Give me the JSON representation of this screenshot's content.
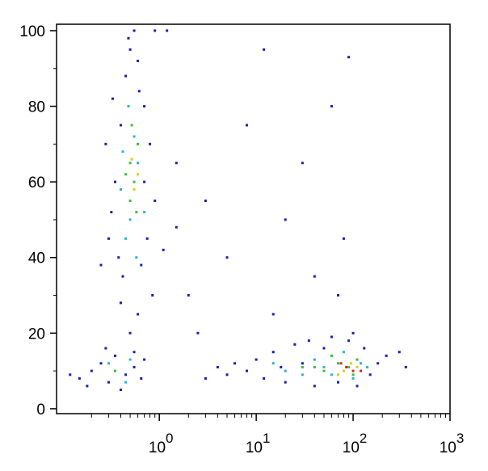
{
  "chart_data": {
    "type": "scatter",
    "xscale": "log",
    "xlim": [
      0.087,
      1000
    ],
    "ylim": [
      -1.3,
      101.7
    ],
    "xticks": [
      {
        "value": 1,
        "label": "10",
        "power": "0"
      },
      {
        "value": 10,
        "label": "10",
        "power": "1"
      },
      {
        "value": 100,
        "label": "10",
        "power": "2"
      },
      {
        "value": 1000,
        "label": "10",
        "power": "3"
      }
    ],
    "xminorticks": [
      0.2,
      0.3,
      0.4,
      0.5,
      0.6,
      0.7,
      0.8,
      0.9,
      2,
      3,
      4,
      5,
      6,
      7,
      8,
      9,
      20,
      30,
      40,
      50,
      60,
      70,
      80,
      90,
      200,
      300,
      400,
      500,
      600,
      700,
      800,
      900
    ],
    "yticks": [
      0,
      20,
      40,
      60,
      80,
      100
    ],
    "yminorticks": [
      10,
      30,
      50,
      70,
      90
    ],
    "series": [
      {
        "color": "#1c1cb0",
        "x": [
          0.3,
          0.35,
          0.4,
          0.45,
          0.5,
          0.55,
          0.6,
          0.7,
          0.8,
          0.9,
          0.32,
          0.38,
          0.42,
          0.65,
          0.75,
          0.85,
          0.6,
          0.5,
          0.4,
          0.55,
          0.7,
          0.28,
          0.33,
          0.48,
          0.9,
          1.2,
          1.1,
          1.5,
          0.25,
          0.62,
          0.15,
          0.2,
          0.25,
          0.3,
          0.35,
          0.45,
          0.55,
          0.65,
          0.12,
          0.18,
          0.4,
          0.7,
          0.28,
          8,
          10,
          12,
          15,
          20,
          25,
          30,
          40,
          50,
          60,
          70,
          90,
          110,
          130,
          150,
          180,
          220,
          300,
          350,
          5,
          6,
          3,
          4,
          18,
          35,
          2,
          3,
          5,
          8,
          15,
          20,
          40,
          60,
          80,
          100,
          1.5,
          2.5,
          30,
          12,
          90,
          70
        ],
        "values": [
          45,
          60,
          75,
          88,
          95,
          100,
          92,
          80,
          70,
          55,
          52,
          40,
          35,
          38,
          45,
          30,
          25,
          20,
          28,
          15,
          60,
          70,
          82,
          98,
          100,
          100,
          42,
          48,
          38,
          84,
          8,
          10,
          12,
          7,
          14,
          9,
          11,
          8,
          9,
          6,
          5,
          13,
          16,
          10,
          13,
          8,
          15,
          7,
          17,
          12,
          6,
          16,
          19,
          7,
          18,
          6,
          16,
          9,
          12,
          14,
          15,
          11,
          9,
          12,
          8,
          11,
          11,
          18,
          30,
          55,
          40,
          75,
          25,
          50,
          35,
          80,
          45,
          20,
          65,
          20,
          65,
          95,
          93,
          30
        ]
      },
      {
        "color": "#2ab4c8",
        "x": [
          0.45,
          0.5,
          0.6,
          0.55,
          0.48,
          0.4,
          0.7,
          0.42,
          0.3,
          0.5,
          0.45,
          20,
          30,
          40,
          50,
          80,
          100,
          120,
          60,
          15,
          140,
          0.58
        ],
        "values": [
          45,
          50,
          65,
          72,
          80,
          58,
          52,
          68,
          12,
          13,
          7,
          10,
          9,
          13,
          11,
          15,
          8,
          12,
          9,
          12,
          11,
          40
        ]
      },
      {
        "color": "#34c034",
        "x": [
          0.5,
          0.55,
          0.6,
          0.5,
          0.45,
          0.52,
          0.58,
          0.35,
          50,
          70,
          90,
          110,
          40,
          100,
          60,
          30
        ],
        "values": [
          55,
          60,
          70,
          65,
          62,
          75,
          52,
          10,
          10,
          12,
          11,
          13,
          11,
          9,
          14,
          11
        ]
      },
      {
        "color": "#d2d020",
        "x": [
          0.55,
          0.52,
          0.6,
          80,
          95,
          110,
          70
        ],
        "values": [
          58,
          66,
          62,
          10,
          12,
          11,
          9
        ]
      },
      {
        "color": "#e02020",
        "x": [
          85,
          100,
          75,
          120
        ],
        "values": [
          11,
          10,
          12,
          10
        ]
      }
    ]
  }
}
